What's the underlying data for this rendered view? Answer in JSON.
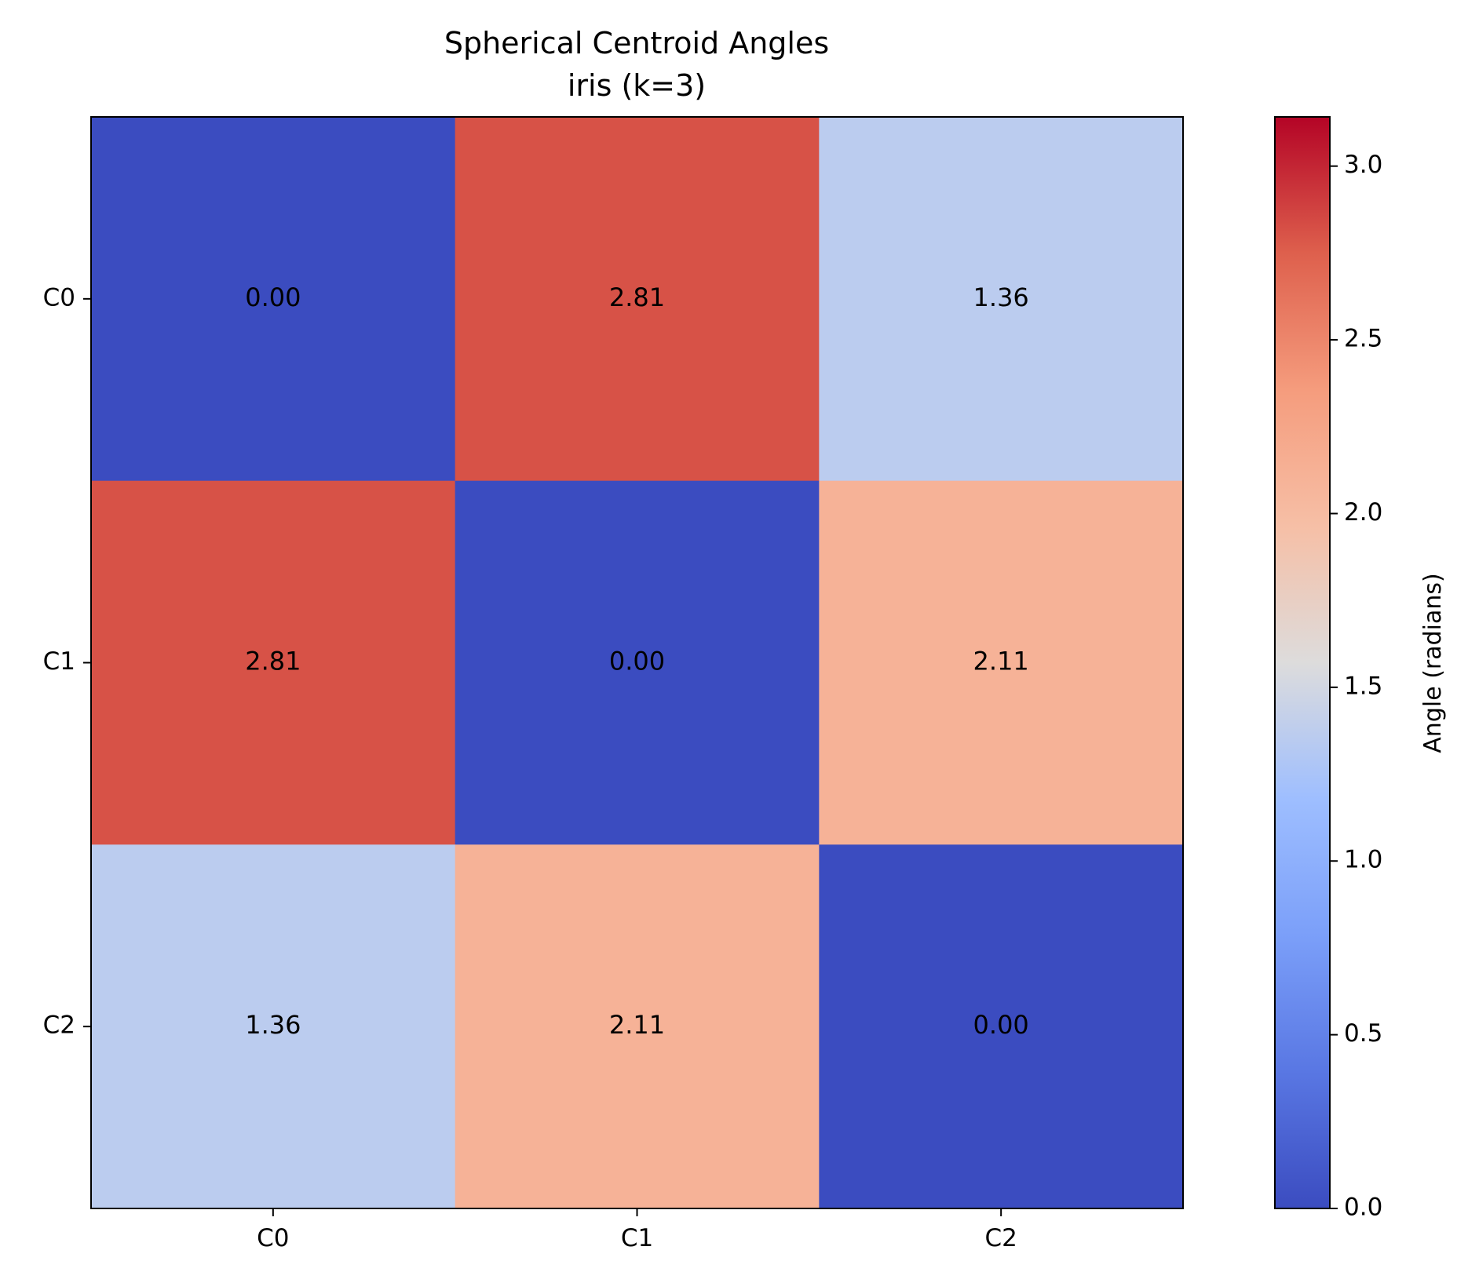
{
  "chart_data": {
    "type": "heatmap",
    "title": "Spherical Centroid Angles",
    "subtitle": "iris (k=3)",
    "row_labels": [
      "C0",
      "C1",
      "C2"
    ],
    "col_labels": [
      "C0",
      "C1",
      "C2"
    ],
    "values": [
      [
        0.0,
        2.81,
        1.36
      ],
      [
        2.81,
        0.0,
        2.11
      ],
      [
        1.36,
        2.11,
        0.0
      ]
    ],
    "cell_text": [
      [
        "0.00",
        "2.81",
        "1.36"
      ],
      [
        "2.81",
        "0.00",
        "2.11"
      ],
      [
        "1.36",
        "2.11",
        "0.00"
      ]
    ],
    "colormap": "coolwarm",
    "colorbar": {
      "label": "Angle (radians)",
      "range": [
        0,
        3.1416
      ],
      "ticks": [
        0.0,
        0.5,
        1.0,
        1.5,
        2.0,
        2.5,
        3.0
      ],
      "tick_labels": [
        "0.0",
        "0.5",
        "1.0",
        "1.5",
        "2.0",
        "2.5",
        "3.0"
      ]
    },
    "grid": false
  }
}
